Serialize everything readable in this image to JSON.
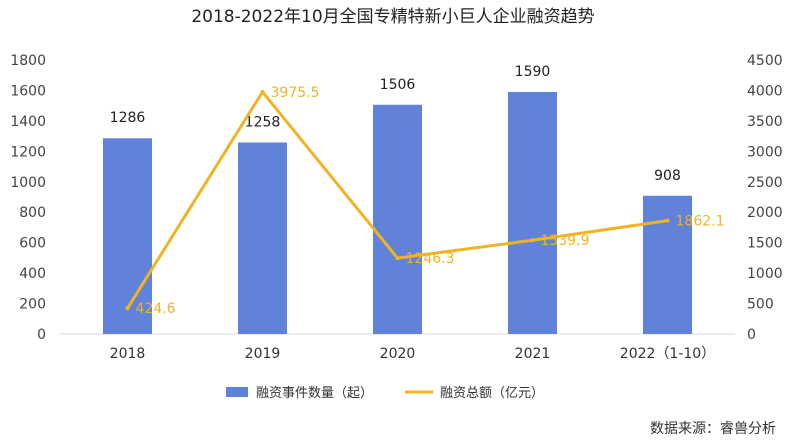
{
  "chart_data": {
    "type": "bar",
    "title": "2018-2022年10月全国专精特新小巨人企业融资趋势",
    "categories": [
      "2018",
      "2019",
      "2020",
      "2021",
      "2022（1-10）"
    ],
    "series": [
      {
        "name": "融资事件数量（起）",
        "type": "bar",
        "axis": "left",
        "color": "#6082D9",
        "values": [
          1286,
          1258,
          1506,
          1590,
          908
        ]
      },
      {
        "name": "融资总额（亿元）",
        "type": "line",
        "axis": "right",
        "color": "#F0B323",
        "values": [
          424.6,
          3975.5,
          1246.3,
          1539.9,
          1862.1
        ],
        "labels": [
          "424.6",
          "3975.5",
          "1246.3",
          "1539.9",
          "1862.1"
        ]
      }
    ],
    "y_left": {
      "min": 0,
      "max": 1800,
      "ticks": [
        0,
        200,
        400,
        600,
        800,
        1000,
        1200,
        1400,
        1600,
        1800
      ]
    },
    "y_right": {
      "min": 0,
      "max": 4500,
      "ticks": [
        0,
        500,
        1000,
        1500,
        2000,
        2500,
        3000,
        3500,
        4000,
        4500
      ]
    },
    "grid": false,
    "legend_position": "bottom"
  },
  "source": "数据来源：睿兽分析"
}
